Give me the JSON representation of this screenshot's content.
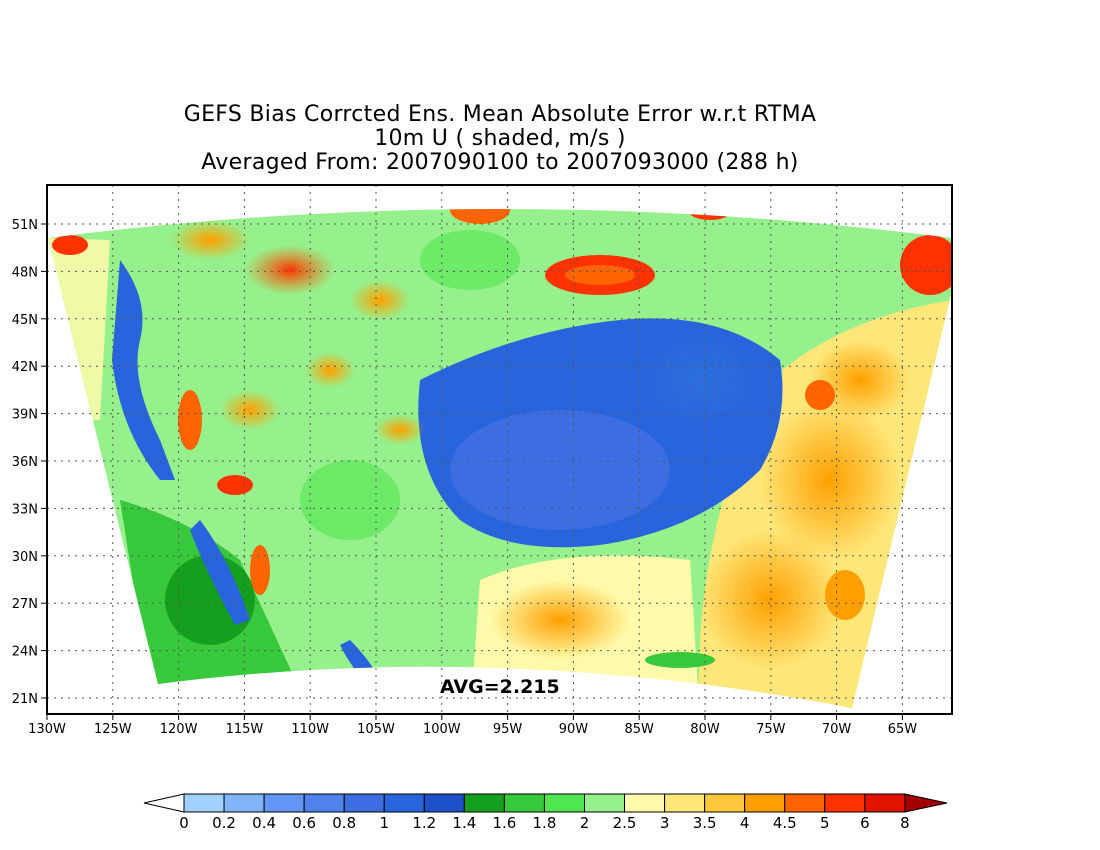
{
  "title": {
    "line1": "GEFS Bias Corrcted Ens. Mean Absolute Error w.r.t RTMA",
    "line2": "10m U ( shaded, m/s )",
    "line3": "Averaged From: 2007090100 to 2007093000 (288 h)"
  },
  "avg_label": "AVG=2.215",
  "lat_ticks": [
    "51N",
    "48N",
    "45N",
    "42N",
    "39N",
    "36N",
    "33N",
    "30N",
    "27N",
    "24N",
    "21N"
  ],
  "lon_ticks": [
    "130W",
    "125W",
    "120W",
    "115W",
    "110W",
    "105W",
    "100W",
    "95W",
    "90W",
    "85W",
    "80W",
    "75W",
    "70W",
    "65W"
  ],
  "colorbar": {
    "labels": [
      "0",
      "0.2",
      "0.4",
      "0.6",
      "0.8",
      "1",
      "1.2",
      "1.4",
      "1.6",
      "1.8",
      "2",
      "2.5",
      "3",
      "3.5",
      "4",
      "4.5",
      "5",
      "6",
      "8"
    ],
    "colors": [
      "#a0d2ff",
      "#82b4fa",
      "#6496f5",
      "#5082eb",
      "#3c6ee1",
      "#2864dc",
      "#1e50c8",
      "#14a01e",
      "#37c83c",
      "#50e650",
      "#96f08c",
      "#fffaaa",
      "#ffe678",
      "#ffc83c",
      "#ffa000",
      "#ff6400",
      "#ff3200",
      "#e11400",
      "#c00000"
    ],
    "under_color": "#ffffff",
    "over_color": "#a50000"
  }
}
